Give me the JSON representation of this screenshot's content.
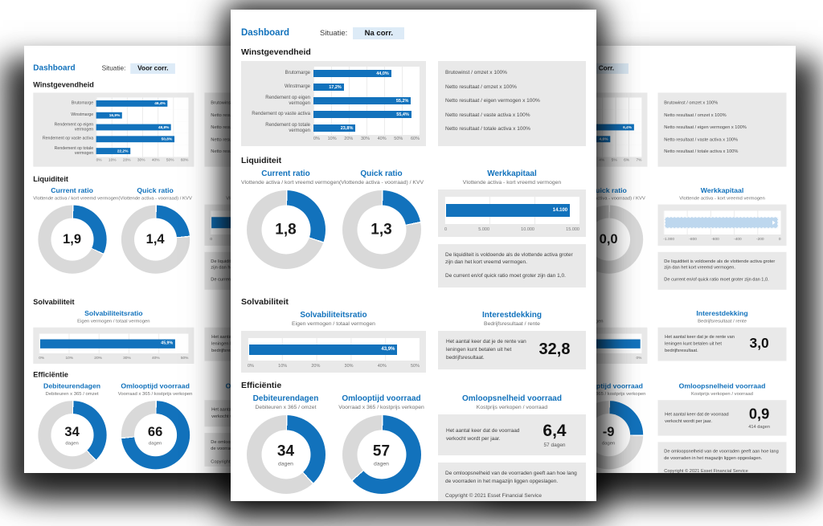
{
  "accent": "#1272BC",
  "sheets": {
    "center": {
      "title": "Dashboard",
      "situatie_label": "Situatie:",
      "situatie_value": "Na corr.",
      "profit": {
        "heading": "Winstgevendheid",
        "chart": {
          "type": "bar",
          "categories": [
            "Brutomarge",
            "Winstmarge",
            "Rendement op eigen vermogen",
            "Rendement op vaste activa",
            "Rendement op totale vermogen"
          ],
          "values": [
            44.0,
            17.2,
            55.2,
            55.4,
            23.8
          ],
          "labels": [
            "44,0%",
            "17,2%",
            "55,2%",
            "55,4%",
            "23,8%"
          ],
          "max": 60,
          "axis": [
            "0%",
            "10%",
            "20%",
            "30%",
            "40%",
            "50%",
            "60%"
          ]
        },
        "formulas": [
          "Brutowinst / omzet x 100%",
          "Netto resultaat / omzet x 100%",
          "Netto resultaat / eigen vermogen x 100%",
          "Netto resultaat / vaste activa x 100%",
          "Netto resultaat / totale activa x 100%"
        ]
      },
      "liquidity": {
        "heading": "Liquiditeit",
        "donuts": [
          {
            "title": "Current ratio",
            "subtitle": "Vlottende activa / kort vreemd vermogen",
            "value": "1,8",
            "pct": 30
          },
          {
            "title": "Quick ratio",
            "subtitle": "(Vlottende activa - voorraad) / KVV",
            "value": "1,3",
            "pct": 21.7
          }
        ],
        "werkkapitaal": {
          "type": "bar",
          "title": "Werkkapitaal",
          "subtitle": "Vlottende activa - kort vreemd vermogen",
          "value": 14100,
          "value_label": "14.100",
          "bar_pct": 94,
          "axis": [
            "0",
            "5.000",
            "10.000",
            "15.000"
          ]
        },
        "note1": "De liquiditeit is voldoende als de vlottende activa groter zijn dan het kort vreemd vermogen.",
        "note2": "De current en/of quick ratio moet groter zijn dan 1,0."
      },
      "solvency": {
        "heading": "Solvabiliteit",
        "ratio": {
          "type": "bar",
          "title": "Solvabiliteitsratio",
          "subtitle": "Eigen vermogen / totaal vermogen",
          "value_label": "43,9%",
          "bar_pct": 87.8,
          "axis": [
            "0%",
            "10%",
            "20%",
            "30%",
            "40%",
            "50%"
          ]
        },
        "interest": {
          "title": "Interestdekking",
          "subtitle": "Bedrijfsresultaat / rente",
          "note": "Het aantal keer dat je de rente van leningen kunt betalen uit het bedrijfsresultaat.",
          "value": "32,8"
        }
      },
      "efficiency": {
        "heading": "Efficiëntie",
        "donuts": [
          {
            "title": "Debiteurendagen",
            "subtitle": "Debiteuren x 365 / omzet",
            "value": "34",
            "unit": "dagen",
            "pct": 37.8
          },
          {
            "title": "Omlooptijd voorraad",
            "subtitle": "Voorraad x 365 / kostprijs verkopen",
            "value": "57",
            "unit": "dagen",
            "pct": 63.3
          }
        ],
        "speed": {
          "title": "Omloopsnelheid voorraad",
          "subtitle": "Kostprijs verkopen / voorraad",
          "note": "Het aantal keer dat de voorraad verkocht wordt per jaar.",
          "value": "6,4",
          "sub": "57 dagen"
        },
        "note": "De omloopsnelheid van de voorraden geeft aan hoe lang de voorraden in het magazijn liggen opgeslagen.",
        "copyright": "Copyright © 2021 Esset Financial Service"
      }
    },
    "left": {
      "title": "Dashboard",
      "situatie_label": "Situatie:",
      "situatie_value": "Voor corr.",
      "profit": {
        "heading": "Winstgevendheid",
        "chart": {
          "type": "bar",
          "categories": [
            "Brutomarge",
            "Winstmarge",
            "Rendement op eigen vermogen",
            "Rendement op vaste activa",
            "Rendement op totale vermogen"
          ],
          "values": [
            46.4,
            16.9,
            48.8,
            50.8,
            22.2
          ],
          "labels": [
            "46,4%",
            "16,9%",
            "48,8%",
            "50,8%",
            "22,2%"
          ],
          "max": 60,
          "axis": [
            "0%",
            "10%",
            "20%",
            "30%",
            "40%",
            "50%",
            "60%"
          ]
        },
        "formulas": [
          "Brutowinst / omzet x 100%",
          "Netto resultaat / omzet x 100%",
          "Netto resultaat / eigen vermogen x 100%",
          "Netto resultaat / vaste activa x 100%",
          "Netto resultaat / totale activa x 100%"
        ]
      },
      "liquidity": {
        "heading": "Liquiditeit",
        "donuts": [
          {
            "title": "Current ratio",
            "subtitle": "Vlottende activa / kort vreemd vermogen",
            "value": "1,9",
            "pct": 31.7
          },
          {
            "title": "Quick ratio",
            "subtitle": "(Vlottende activa - voorraad) / KVV",
            "value": "1,4",
            "pct": 23.3
          }
        ],
        "werkkapitaal": {
          "type": "bar",
          "title": "Werkkapitaal",
          "subtitle": "Vlottende activa - kort vreemd vermogen",
          "value_label": "",
          "bar_pct": 92,
          "axis": [
            "0",
            "5.000",
            "10.000",
            "15.000"
          ]
        },
        "note1": "De liquiditeit is voldoende als de vlottende activa groter zijn dan het kort vreemd vermogen.",
        "note2": "De current en/of quick ratio moet groter zijn dan 1,0."
      },
      "solvency": {
        "heading": "Solvabiliteit",
        "ratio": {
          "type": "bar",
          "title": "Solvabiliteitsratio",
          "subtitle": "Eigen vermogen / totaal vermogen",
          "value_label": "45,9%",
          "bar_pct": 91.8,
          "axis": [
            "0%",
            "10%",
            "20%",
            "30%",
            "40%",
            "50%"
          ]
        },
        "interest": {
          "title": "Interestdekking",
          "subtitle": "Bedrijfsresultaat / rente",
          "note": "Het aantal keer dat je de rente van leningen kunt betalen uit het bedrijfsresultaat.",
          "value": ""
        }
      },
      "efficiency": {
        "heading": "Efficiëntie",
        "donuts": [
          {
            "title": "Debiteurendagen",
            "subtitle": "Debiteuren x 365 / omzet",
            "value": "34",
            "unit": "dagen",
            "pct": 37.8
          },
          {
            "title": "Omlooptijd voorraad",
            "subtitle": "Voorraad x 365 / kostprijs verkopen",
            "value": "66",
            "unit": "dagen",
            "pct": 73.3
          }
        ],
        "speed": {
          "title": "Omloopsnelheid voorraad",
          "subtitle": "Kostprijs verkopen / voorraad",
          "note": "Het aantal keer dat de voorraad verkocht wordt per jaar.",
          "value": "",
          "sub": ""
        },
        "note": "De omloopsnelheid van de voorraden geeft aan hoe lang de voorraden in het magazijn liggen opgeslagen.",
        "copyright": "Copyright © 2021 Esset Financial Service"
      }
    },
    "right": {
      "title": "Dashboard",
      "situatie_label": "Situatie:",
      "situatie_value": "Corr.",
      "profit": {
        "heading": "Winstgevendheid",
        "chart": {
          "type": "bar",
          "categories": [
            "Brutomarge",
            "Winstmarge",
            "Rendement op eigen vermogen",
            "Rendement op vaste activa",
            "Rendement op totale vermogen"
          ],
          "values": [
            null,
            null,
            6.4,
            4.6,
            null
          ],
          "labels": [
            null,
            null,
            "6,4%",
            "4,6%",
            null
          ],
          "max": 7,
          "axis": [
            "0%",
            "1%",
            "2%",
            "3%",
            "4%",
            "5%",
            "6%",
            "7%"
          ]
        },
        "formulas": [
          "Brutowinst / omzet x 100%",
          "Netto resultaat / omzet x 100%",
          "Netto resultaat / eigen vermogen x 100%",
          "Netto resultaat / vaste activa x 100%",
          "Netto resultaat / totale activa x 100%"
        ]
      },
      "liquidity": {
        "heading": "Liquiditeit",
        "donuts": [
          {
            "title": "Current ratio",
            "subtitle": "Vlottende activa / kort vreemd vermogen",
            "value": "",
            "pct": 0
          },
          {
            "title": "Quick ratio",
            "subtitle": "(Vlottende activa - voorraad) / KVV",
            "value": "0,0",
            "pct": 0
          }
        ],
        "werkkapitaal": {
          "type": "bar",
          "title": "Werkkapitaal",
          "subtitle": "Vlottende activa - kort vreemd vermogen",
          "value_label": "",
          "bar_pct": 99,
          "axis": [
            "-1.000",
            "-800",
            "-600",
            "-400",
            "-200",
            "0"
          ]
        },
        "note1": "De liquiditeit is voldoende als de vlottende activa groter zijn dan het kort vreemd vermogen.",
        "note2": "De current en/of quick ratio moet groter zijn dan 1,0."
      },
      "solvency": {
        "heading": "Solvabiliteit",
        "ratio": {
          "type": "bar",
          "title": "Solvabiliteitsratio",
          "subtitle": "Eigen vermogen / totaal vermogen",
          "value_label": "",
          "bar_pct": 100,
          "axis": [
            "-2%",
            "-1%",
            "-1%",
            "0%"
          ]
        },
        "interest": {
          "title": "Interestdekking",
          "subtitle": "Bedrijfsresultaat / rente",
          "note": "Het aantal keer dat je de rente van leningen kunt betalen uit het bedrijfsresultaat.",
          "value": "3,0"
        }
      },
      "efficiency": {
        "heading": "Efficiëntie",
        "donuts": [
          {
            "title": "Debiteurendagen",
            "subtitle": "Debiteuren x 365 / omzet",
            "value": "",
            "unit": "",
            "pct": 0
          },
          {
            "title": "Omlooptijd voorraad",
            "subtitle": "Voorraad x 365 / kostprijs verkopen",
            "value": "-9",
            "unit": "dagen",
            "pct": 25
          }
        ],
        "speed": {
          "title": "Omloopsnelheid voorraad",
          "subtitle": "Kostprijs verkopen / voorraad",
          "note": "Het aantal keer dat de voorraad verkocht wordt per jaar.",
          "value": "0,9",
          "sub": "414 dagen"
        },
        "note": "De omloopsnelheid van de voorraden geeft aan hoe lang de voorraden in het magazijn liggen opgeslagen.",
        "copyright": "Copyright © 2021 Esset Financial Service"
      }
    }
  }
}
